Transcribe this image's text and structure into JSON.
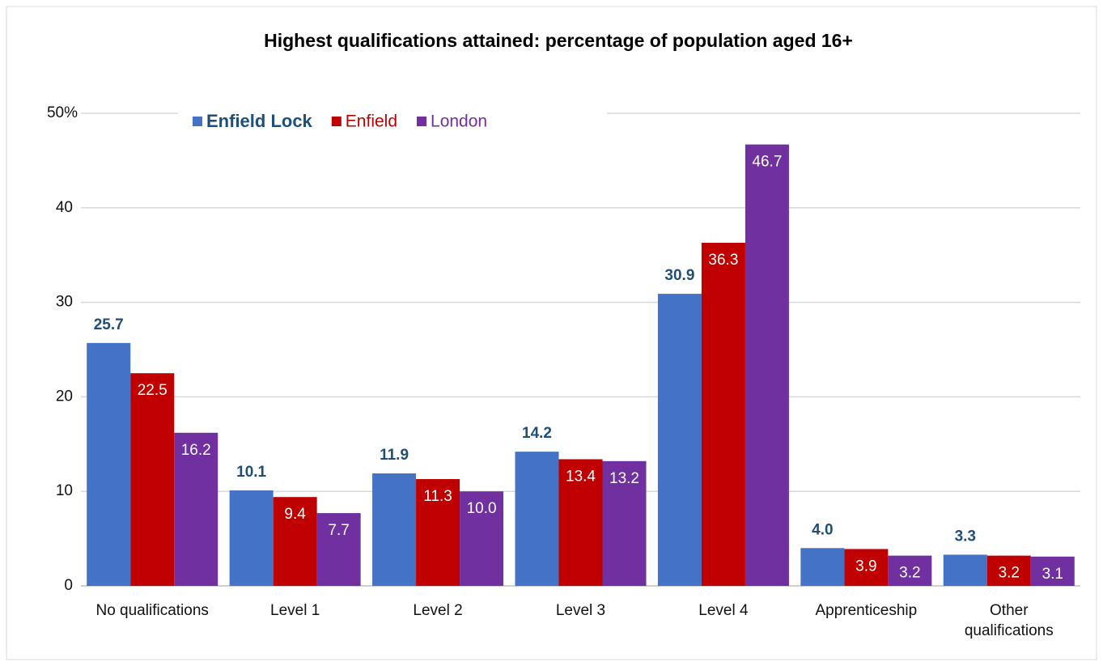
{
  "chart_data": {
    "type": "bar",
    "title": "Highest qualifications attained:  percentage of population aged 16+",
    "categories": [
      "No qualifications",
      "Level 1",
      "Level 2",
      "Level 3",
      "Level 4",
      "Apprenticeship",
      "Other qualifications"
    ],
    "series": [
      {
        "name": "Enfield Lock",
        "color": "#4472c4",
        "label_color": "#1f4e79",
        "label_position": "outside",
        "values": [
          25.7,
          10.1,
          11.9,
          14.2,
          30.9,
          4.0,
          3.3
        ],
        "value_labels": [
          "25.7",
          "10.1",
          "11.9",
          "14.2",
          "30.9",
          "4.0",
          "3.3"
        ]
      },
      {
        "name": "Enfield",
        "color": "#c00000",
        "label_color": "#ffffff",
        "label_position": "inside",
        "values": [
          22.5,
          9.4,
          11.3,
          13.4,
          36.3,
          3.9,
          3.2
        ],
        "value_labels": [
          "22.5",
          "9.4",
          "11.3",
          "13.4",
          "36.3",
          "3.9",
          "3.2"
        ]
      },
      {
        "name": "London",
        "color": "#7030a0",
        "label_color": "#ffffff",
        "label_position": "inside",
        "values": [
          16.2,
          7.7,
          10.0,
          13.2,
          46.7,
          3.2,
          3.1
        ],
        "value_labels": [
          "16.2",
          "7.7",
          "10.0",
          "13.2",
          "46.7",
          "3.2",
          "3.1"
        ]
      }
    ],
    "ylim": [
      0,
      50
    ],
    "yticks": [
      0,
      10,
      20,
      30,
      40,
      {
        "value": 50,
        "label": "50%"
      }
    ],
    "grid": true,
    "legend": "top-left"
  }
}
